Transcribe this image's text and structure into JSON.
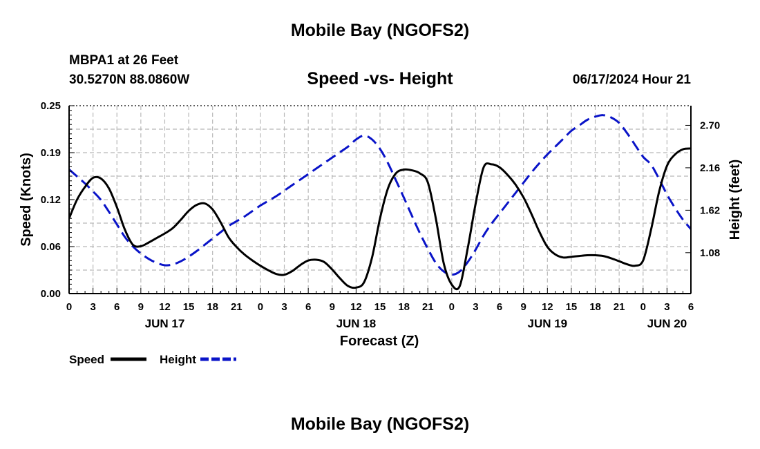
{
  "header": {
    "title": "Mobile Bay (NGOFS2)",
    "station": "MBPA1 at 26 Feet",
    "coords": "30.5270N  88.0860W",
    "subtitle": "Speed -vs- Height",
    "timestamp": "06/17/2024 Hour 21"
  },
  "footer": {
    "title": "Mobile Bay (NGOFS2)"
  },
  "chart_data": {
    "type": "line",
    "title": "Speed -vs- Height",
    "xlabel": "Forecast (Z)",
    "ylabel": "Speed (Knots)",
    "y2label": "Height (feet)",
    "xlim": [
      0,
      78
    ],
    "ylim": [
      0,
      0.25
    ],
    "y2lim": [
      0.56,
      2.95
    ],
    "x_ticks": [
      0,
      3,
      6,
      9,
      12,
      15,
      18,
      21,
      24,
      27,
      30,
      33,
      36,
      39,
      42,
      45,
      48,
      51,
      54,
      57,
      60,
      63,
      66,
      69,
      72,
      75,
      78
    ],
    "x_tick_labels": [
      "0",
      "3",
      "6",
      "9",
      "12",
      "15",
      "18",
      "21",
      "0",
      "3",
      "6",
      "9",
      "12",
      "15",
      "18",
      "21",
      "0",
      "3",
      "6",
      "9",
      "12",
      "15",
      "18",
      "21",
      "0",
      "3",
      "6"
    ],
    "day_labels": [
      {
        "x": 12,
        "label": "JUN 17"
      },
      {
        "x": 36,
        "label": "JUN 18"
      },
      {
        "x": 60,
        "label": "JUN 19"
      },
      {
        "x": 75,
        "label": "JUN 20"
      }
    ],
    "y_ticks": [
      0,
      0.0625,
      0.125,
      0.1875,
      0.25
    ],
    "y_tick_labels": [
      "0.00",
      "0.06",
      "0.12",
      "0.19",
      "0.25"
    ],
    "y2_ticks": [
      1.08,
      1.62,
      2.16,
      2.7
    ],
    "y2_tick_labels": [
      "1.08",
      "1.62",
      "2.16",
      "2.70"
    ],
    "grid": true,
    "legend": [
      {
        "name": "Speed",
        "color": "#000000",
        "dash": "solid"
      },
      {
        "name": "Height",
        "color": "#0a14c8",
        "dash": "dashed"
      }
    ],
    "series": [
      {
        "name": "Speed",
        "axis": "left",
        "color": "#000000",
        "x": [
          0,
          1,
          2,
          3,
          4,
          5,
          6,
          7,
          8,
          9,
          10,
          11,
          12,
          13,
          14,
          15,
          16,
          17,
          18,
          19,
          20,
          21,
          22,
          23,
          24,
          25,
          26,
          27,
          28,
          29,
          30,
          31,
          32,
          33,
          34,
          35,
          36,
          37,
          38,
          39,
          40,
          41,
          42,
          43,
          44,
          45,
          46,
          47,
          48,
          49,
          50,
          51,
          52,
          53,
          54,
          55,
          56,
          57,
          58,
          59,
          60,
          61,
          62,
          63,
          64,
          65,
          66,
          67,
          68,
          69,
          70,
          71,
          72,
          73,
          74,
          75,
          76,
          77,
          78
        ],
        "values": [
          0.1,
          0.125,
          0.142,
          0.154,
          0.153,
          0.14,
          0.115,
          0.085,
          0.065,
          0.063,
          0.068,
          0.074,
          0.08,
          0.087,
          0.098,
          0.11,
          0.118,
          0.12,
          0.112,
          0.095,
          0.075,
          0.062,
          0.052,
          0.044,
          0.037,
          0.031,
          0.026,
          0.025,
          0.03,
          0.038,
          0.044,
          0.045,
          0.042,
          0.032,
          0.02,
          0.01,
          0.008,
          0.015,
          0.048,
          0.1,
          0.14,
          0.16,
          0.165,
          0.164,
          0.16,
          0.148,
          0.1,
          0.04,
          0.012,
          0.01,
          0.06,
          0.12,
          0.168,
          0.172,
          0.168,
          0.158,
          0.145,
          0.128,
          0.106,
          0.082,
          0.062,
          0.052,
          0.048,
          0.049,
          0.05,
          0.051,
          0.051,
          0.05,
          0.047,
          0.043,
          0.039,
          0.037,
          0.044,
          0.085,
          0.135,
          0.17,
          0.185,
          0.192,
          0.193
        ]
      },
      {
        "name": "Height",
        "axis": "right",
        "color": "#0a14c8",
        "x": [
          0,
          1,
          2,
          3,
          4,
          5,
          6,
          7,
          8,
          9,
          10,
          11,
          12,
          13,
          14,
          15,
          16,
          17,
          18,
          19,
          20,
          21,
          22,
          23,
          24,
          25,
          26,
          27,
          28,
          29,
          30,
          31,
          32,
          33,
          34,
          35,
          36,
          37,
          38,
          39,
          40,
          41,
          42,
          43,
          44,
          45,
          46,
          47,
          48,
          49,
          50,
          51,
          52,
          53,
          54,
          55,
          56,
          57,
          58,
          59,
          60,
          61,
          62,
          63,
          64,
          65,
          66,
          67,
          68,
          69,
          70,
          71,
          72,
          73,
          74,
          75,
          76,
          77,
          78
        ],
        "values": [
          2.14,
          2.05,
          1.96,
          1.86,
          1.75,
          1.6,
          1.44,
          1.28,
          1.16,
          1.07,
          1.0,
          0.95,
          0.92,
          0.93,
          0.97,
          1.03,
          1.1,
          1.18,
          1.26,
          1.34,
          1.42,
          1.48,
          1.54,
          1.61,
          1.68,
          1.74,
          1.8,
          1.87,
          1.94,
          2.01,
          2.08,
          2.15,
          2.22,
          2.29,
          2.36,
          2.43,
          2.52,
          2.57,
          2.52,
          2.4,
          2.22,
          2.0,
          1.78,
          1.55,
          1.33,
          1.13,
          0.95,
          0.84,
          0.8,
          0.84,
          0.96,
          1.12,
          1.3,
          1.45,
          1.58,
          1.71,
          1.84,
          1.97,
          2.1,
          2.22,
          2.33,
          2.43,
          2.53,
          2.63,
          2.7,
          2.77,
          2.81,
          2.83,
          2.8,
          2.73,
          2.6,
          2.45,
          2.3,
          2.2,
          2.02,
          1.82,
          1.65,
          1.5,
          1.38
        ]
      }
    ]
  }
}
